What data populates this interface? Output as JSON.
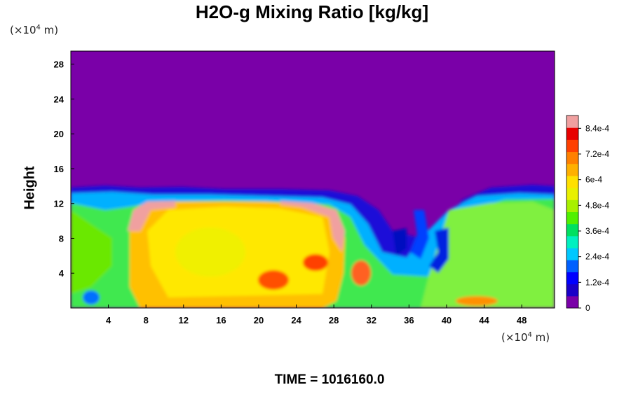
{
  "chart_data": {
    "type": "heatmap",
    "title": "H2O-g Mixing Ratio [kg/kg]",
    "ylabel": "Height",
    "xlabel": "",
    "x_unit_prefix": "(×10",
    "x_unit_exp": "4",
    "x_unit_suffix": " m)",
    "y_unit_prefix": "(×10",
    "y_unit_exp": "4",
    "y_unit_suffix": " m)",
    "xlim": [
      0,
      51.5
    ],
    "ylim": [
      0,
      29.5
    ],
    "x_ticks": [
      4,
      8,
      12,
      16,
      20,
      24,
      28,
      32,
      36,
      40,
      44,
      48
    ],
    "y_ticks": [
      4,
      8,
      12,
      16,
      20,
      24,
      28
    ],
    "colorbar": {
      "min": 0,
      "max": 0.0009,
      "ticks": [
        "0",
        "1.2e-4",
        "2.4e-4",
        "3.6e-4",
        "4.8e-4",
        "6e-4",
        "7.2e-4",
        "8.4e-4"
      ],
      "tick_values": [
        0,
        0.00012,
        0.00024,
        0.00036,
        0.00048,
        0.0006,
        0.00072,
        0.00084
      ],
      "colors": [
        "#7a00a8",
        "#1a00c8",
        "#0000ff",
        "#0060ff",
        "#00c8ff",
        "#00f0c0",
        "#00e060",
        "#50f000",
        "#a8f000",
        "#e8f000",
        "#ffe000",
        "#ffb000",
        "#ff8000",
        "#ff4000",
        "#e80000",
        "#f0a0a0"
      ]
    },
    "annotation": "TIME = 1016160.0"
  }
}
